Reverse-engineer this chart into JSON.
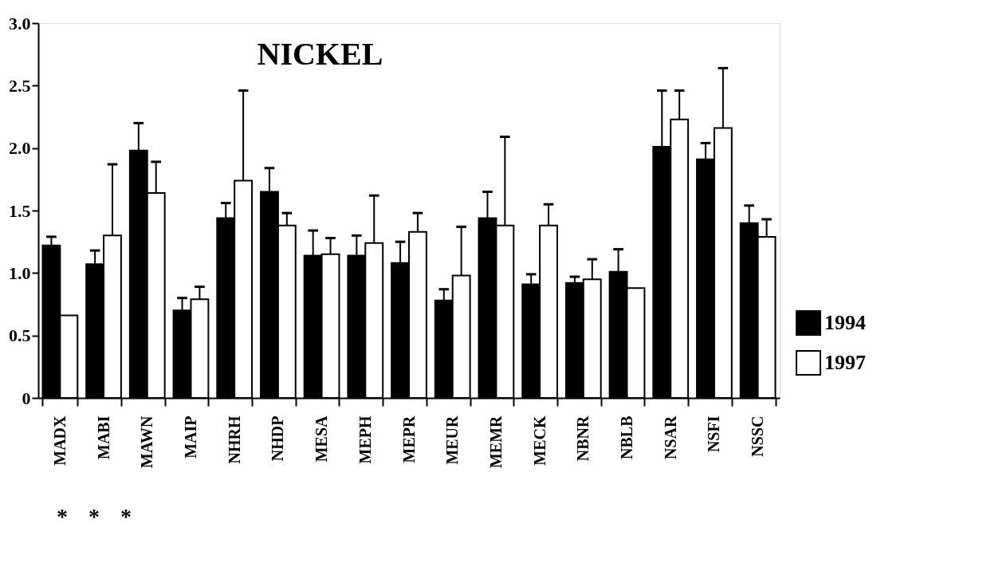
{
  "chart_data": {
    "type": "bar",
    "title": "NICKEL",
    "categories": [
      "MADX",
      "MABI",
      "MAWN",
      "MAIP",
      "NHRH",
      "NHDP",
      "MESA",
      "MEPH",
      "MEPR",
      "MEUR",
      "MEMR",
      "MECK",
      "NBNR",
      "NBLB",
      "NSAR",
      "NSFI",
      "NSSC"
    ],
    "series": [
      {
        "name": "1994",
        "color": "#000000",
        "values": [
          1.22,
          1.07,
          1.98,
          0.7,
          1.44,
          1.65,
          1.14,
          1.14,
          1.08,
          0.78,
          1.44,
          0.91,
          0.92,
          1.01,
          2.01,
          1.91,
          1.4
        ],
        "errors": [
          [
            1.22,
            1.29
          ],
          [
            1.07,
            1.18
          ],
          [
            1.98,
            2.2
          ],
          [
            0.7,
            0.8
          ],
          [
            1.44,
            1.56
          ],
          [
            1.65,
            1.84
          ],
          [
            1.14,
            1.34
          ],
          [
            1.14,
            1.3
          ],
          [
            1.08,
            1.25
          ],
          [
            0.78,
            0.87
          ],
          [
            1.44,
            1.65
          ],
          [
            0.91,
            0.99
          ],
          [
            0.92,
            0.97
          ],
          [
            1.01,
            1.19
          ],
          [
            2.01,
            2.46
          ],
          [
            1.91,
            2.04
          ],
          [
            1.4,
            1.54
          ]
        ]
      },
      {
        "name": "1997",
        "color": "#ffffff",
        "values": [
          0.66,
          1.3,
          1.64,
          0.79,
          1.74,
          1.38,
          1.15,
          1.24,
          1.33,
          0.98,
          1.38,
          1.38,
          0.95,
          0.88,
          2.23,
          2.16,
          1.29
        ],
        "errors": [
          null,
          [
            1.3,
            1.87
          ],
          [
            1.64,
            1.89
          ],
          [
            0.79,
            0.89
          ],
          [
            1.74,
            2.46
          ],
          [
            1.38,
            1.48
          ],
          [
            1.15,
            1.28
          ],
          [
            1.24,
            1.62
          ],
          [
            1.33,
            1.48
          ],
          [
            0.98,
            1.37
          ],
          [
            1.38,
            2.09
          ],
          [
            1.38,
            1.55
          ],
          [
            0.95,
            1.11
          ],
          null,
          [
            2.23,
            2.46
          ],
          [
            2.16,
            2.64
          ],
          [
            1.29,
            1.43
          ]
        ]
      }
    ],
    "ylim": [
      0,
      3.0
    ],
    "yticks": [
      {
        "value": 0,
        "label": "0"
      },
      {
        "value": 0.5,
        "label": "0.5"
      },
      {
        "value": 1.0,
        "label": "1.0"
      },
      {
        "value": 1.5,
        "label": "1.5"
      },
      {
        "value": 2.0,
        "label": "2.0"
      },
      {
        "value": 2.5,
        "label": "2.5"
      },
      {
        "value": 3.0,
        "label": "3.0"
      }
    ],
    "grid": false,
    "legend": "bottom right",
    "annotations": [
      "*",
      "*",
      "*"
    ]
  }
}
